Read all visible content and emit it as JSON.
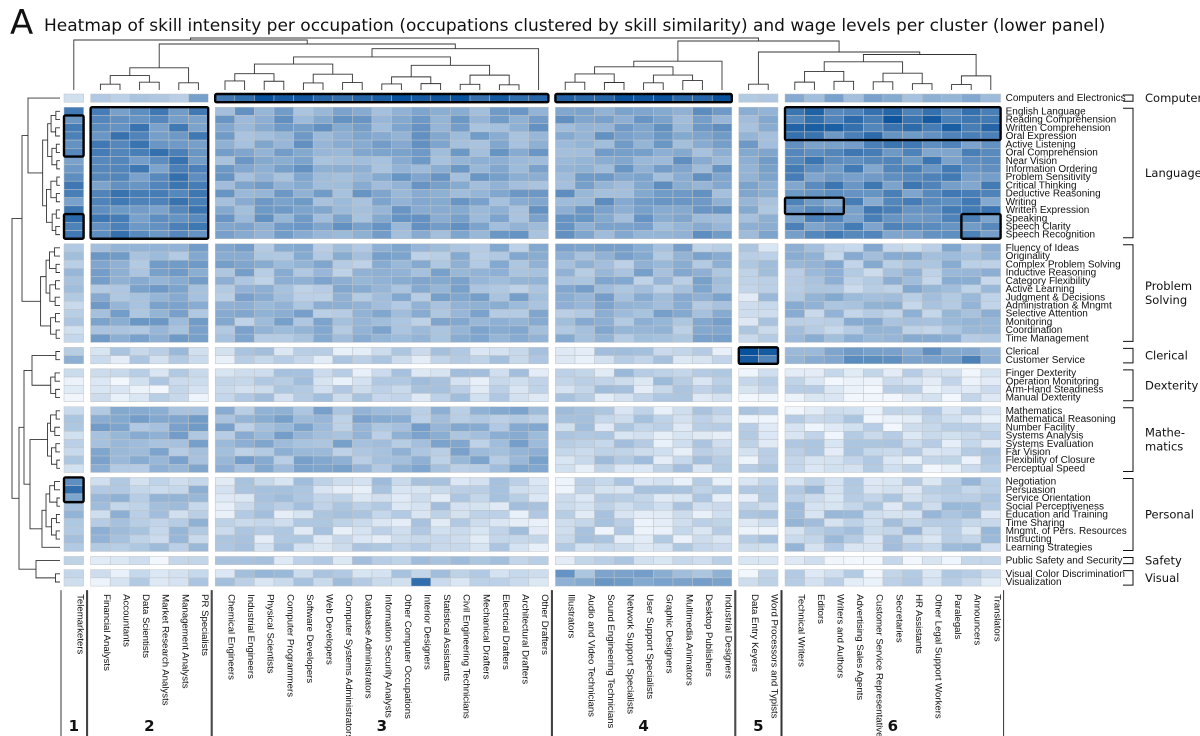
{
  "panel_letter": "A",
  "chart_data": {
    "type": "heatmap",
    "title": "Heatmap of skill intensity per occupation (occupations clustered by skill similarity) and wage levels per cluster (lower panel)",
    "color_scale": {
      "low": "#f2f7fd",
      "high": "#08519c"
    },
    "occupation_clusters": [
      {
        "label": "1",
        "occupations": [
          "Telemarketers"
        ]
      },
      {
        "label": "2",
        "occupations": [
          "Financial Analysts",
          "Accountants",
          "Data Scientists",
          "Market Research Analysts",
          "Management Analysts",
          "PR Specialists"
        ]
      },
      {
        "label": "3",
        "occupations": [
          "Chemical Engineers",
          "Industrial Engineers",
          "Physical Scientists",
          "Computer Programmers",
          "Software Developers",
          "Web Developers",
          "Computer Systems Administrators",
          "Database Administrators",
          "Information Security Analysts",
          "Other Computer Occupations",
          "Interior Designers",
          "Statistical Assistants",
          "Civil Engineering Technicians",
          "Mechanical Drafters",
          "Electrical Drafters",
          "Architectural Drafters",
          "Other Drafters"
        ]
      },
      {
        "label": "4",
        "occupations": [
          "Illustrators",
          "Audio and Video Technicians",
          "Sound Engineering Technicians",
          "Network Support Specialists",
          "User Support Specialists",
          "Graphic Designers",
          "Multimedia Animators",
          "Desktop Publishers",
          "Industrial Designers"
        ]
      },
      {
        "label": "5",
        "occupations": [
          "Data Entry Keyers",
          "Word Processors and Typists"
        ]
      },
      {
        "label": "6",
        "occupations": [
          "Technical Writers",
          "Editors",
          "Writers and Authors",
          "Advertising Sales Agents",
          "Customer Service Representatives",
          "Secretaries",
          "HR Assistants",
          "Other Legal Support Workers",
          "Paralegals",
          "Announcers",
          "Translators"
        ]
      }
    ],
    "skill_groups": [
      {
        "label": "Computer",
        "skills": [
          "Computers and Electronics"
        ]
      },
      {
        "label": "Language",
        "skills": [
          "English Language",
          "Reading Comprehension",
          "Written Comprehension",
          "Oral Expression",
          "Active Listening",
          "Oral Comprehension",
          "Near Vision",
          "Information Ordering",
          "Problem Sensitivity",
          "Critical Thinking",
          "Deductive Reasoning",
          "Writing",
          "Written Expression",
          "Speaking",
          "Speech Clarity",
          "Speech Recognition"
        ]
      },
      {
        "label": "Problem Solving",
        "skills": [
          "Fluency of Ideas",
          "Originality",
          "Complex Problem Solving",
          "Inductive Reasoning",
          "Category Flexibility",
          "Active Learning",
          "Judgment & Decisions",
          "Administration & Mngmt",
          "Selective Attention",
          "Monitoring",
          "Coordination",
          "Time Management"
        ]
      },
      {
        "label": "Clerical",
        "skills": [
          "Clerical",
          "Customer Service"
        ]
      },
      {
        "label": "Dexterity",
        "skills": [
          "Finger Dexterity",
          "Operation Monitoring",
          "Arm-Hand Steadiness",
          "Manual Dexterity"
        ]
      },
      {
        "label": "Mathe- matics",
        "skills": [
          "Mathematics",
          "Mathematical Reasoning",
          "Number Facility",
          "Systems Analysis",
          "Systems Evaluation",
          "Far Vision",
          "Flexibility of Closure",
          "Perceptual Speed"
        ]
      },
      {
        "label": "Personal",
        "skills": [
          "Negotiation",
          "Persuasion",
          "Service Orientation",
          "Social Perceptiveness",
          "Education and Training",
          "Time Sharing",
          "Mngmt. of Pers. Resources",
          "Instructing",
          "Learning Strategies"
        ]
      },
      {
        "label": "Safety",
        "skills": [
          "Public Safety and Security"
        ]
      },
      {
        "label": "Visual",
        "skills": [
          "Visual Color Discrimination",
          "Visualization"
        ]
      }
    ],
    "highlight_boxes": [
      {
        "cluster": "1",
        "skills": [
          "Reading Comprehension",
          "Written Comprehension",
          "Oral Expression",
          "Active Listening",
          "Oral Comprehension"
        ]
      },
      {
        "cluster": "1",
        "skills": [
          "Speaking",
          "Speech Clarity",
          "Speech Recognition"
        ]
      },
      {
        "cluster": "1",
        "skills": [
          "Negotiation",
          "Persuasion",
          "Service Orientation"
        ]
      },
      {
        "cluster": "2",
        "skills": [
          "English Language",
          "Reading Comprehension",
          "Written Comprehension",
          "Oral Expression",
          "Active Listening",
          "Oral Comprehension",
          "Near Vision",
          "Information Ordering",
          "Problem Sensitivity",
          "Critical Thinking",
          "Deductive Reasoning",
          "Writing",
          "Written Expression",
          "Speaking",
          "Speech Clarity",
          "Speech Recognition"
        ]
      },
      {
        "cluster": "3",
        "skills": [
          "Computers and Electronics"
        ]
      },
      {
        "cluster": "4",
        "skills": [
          "Computers and Electronics"
        ]
      },
      {
        "cluster": "5",
        "skills": [
          "Clerical",
          "Customer Service"
        ]
      },
      {
        "cluster": "6",
        "skills": [
          "English Language",
          "Reading Comprehension",
          "Written Comprehension",
          "Oral Expression"
        ]
      },
      {
        "cluster": "6",
        "occupations": [
          "Technical Writers",
          "Editors",
          "Writers and Authors"
        ],
        "skills": [
          "Writing",
          "Written Expression"
        ]
      },
      {
        "cluster": "6",
        "occupations": [
          "Announcers",
          "Translators"
        ],
        "skills": [
          "Speaking",
          "Speech Clarity",
          "Speech Recognition"
        ]
      }
    ],
    "values_note": "",
    "group_means": [
      [
        0.3,
        0.38,
        0.62,
        0.68,
        0.22,
        0.35
      ],
      [
        0.62,
        0.66,
        0.46,
        0.48,
        0.42,
        0.62
      ],
      [
        0.3,
        0.42,
        0.38,
        0.38,
        0.22,
        0.32
      ],
      [
        0.28,
        0.22,
        0.2,
        0.2,
        0.78,
        0.35
      ],
      [
        0.1,
        0.14,
        0.2,
        0.22,
        0.1,
        0.12
      ],
      [
        0.15,
        0.4,
        0.38,
        0.2,
        0.15,
        0.15
      ],
      [
        0.4,
        0.28,
        0.2,
        0.18,
        0.18,
        0.24
      ],
      [
        0.12,
        0.12,
        0.22,
        0.15,
        0.08,
        0.1
      ],
      [
        0.18,
        0.16,
        0.24,
        0.45,
        0.1,
        0.16
      ]
    ],
    "emphasis": {
      "Computers and Electronics": {
        "3": 0.88,
        "4": 0.92,
        "5": 0.25,
        "6": 0.42
      },
      "English Language": {
        "6": 0.8
      },
      "Reading Comprehension": {
        "1": 0.72,
        "6": 0.82
      },
      "Written Comprehension": {
        "1": 0.72,
        "6": 0.78
      },
      "Oral Expression": {
        "1": 0.75,
        "6": 0.7
      },
      "Writing": {
        "6": 0.6
      },
      "Speaking": {
        "1": 0.75
      },
      "Speech Clarity": {
        "1": 0.72
      },
      "Clerical": {
        "5": 0.88,
        "6": 0.52
      },
      "Customer Service": {
        "5": 0.82,
        "6": 0.55
      },
      "Negotiation": {
        "1": 0.72
      },
      "Persuasion": {
        "1": 0.75
      },
      "Interior Designers": {
        "Visualization": 0.8
      }
    }
  }
}
